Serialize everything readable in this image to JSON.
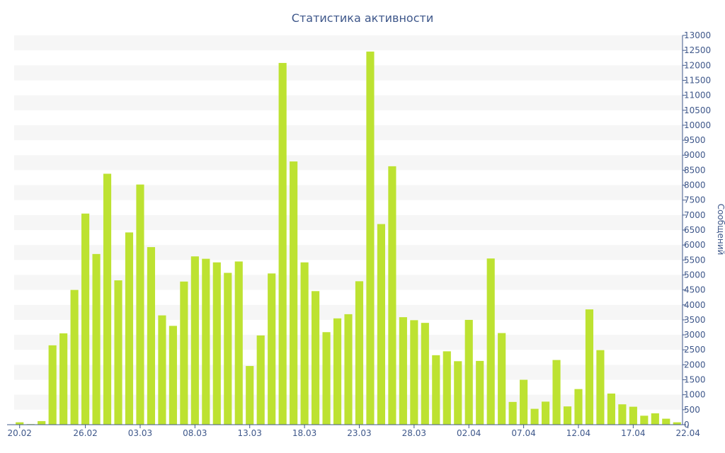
{
  "chart_data": {
    "type": "bar",
    "title": "Статистика активности",
    "xlabel": "",
    "ylabel": "Сообщений",
    "ylim": [
      0,
      13000
    ],
    "y_tick_step": 500,
    "y_axis_side": "right",
    "grid": "alternating horizontal bands",
    "bar_color": "#bde231",
    "text_color": "#3e578a",
    "x_tick_labels": [
      {
        "index": 0,
        "label": "20.02"
      },
      {
        "index": 6,
        "label": "26.02"
      },
      {
        "index": 11,
        "label": "03.03"
      },
      {
        "index": 16,
        "label": "08.03"
      },
      {
        "index": 21,
        "label": "13.03"
      },
      {
        "index": 26,
        "label": "18.03"
      },
      {
        "index": 31,
        "label": "23.03"
      },
      {
        "index": 36,
        "label": "28.03"
      },
      {
        "index": 41,
        "label": "02.04"
      },
      {
        "index": 46,
        "label": "07.04"
      },
      {
        "index": 51,
        "label": "12.04"
      },
      {
        "index": 56,
        "label": "17.04"
      },
      {
        "index": 61,
        "label": "22.04"
      }
    ],
    "values": [
      80,
      20,
      120,
      2650,
      3050,
      4500,
      7050,
      5700,
      8380,
      4820,
      6420,
      8020,
      5930,
      3650,
      3300,
      4780,
      5620,
      5540,
      5420,
      5070,
      5450,
      1960,
      2980,
      5050,
      12080,
      8790,
      5420,
      4460,
      3090,
      3550,
      3690,
      4790,
      12460,
      6700,
      8630,
      3590,
      3490,
      3400,
      2320,
      2450,
      2120,
      3500,
      2130,
      5550,
      3060,
      760,
      1500,
      530,
      770,
      2160,
      610,
      1190,
      3850,
      2490,
      1040,
      680,
      600,
      300,
      380,
      200,
      80
    ]
  }
}
